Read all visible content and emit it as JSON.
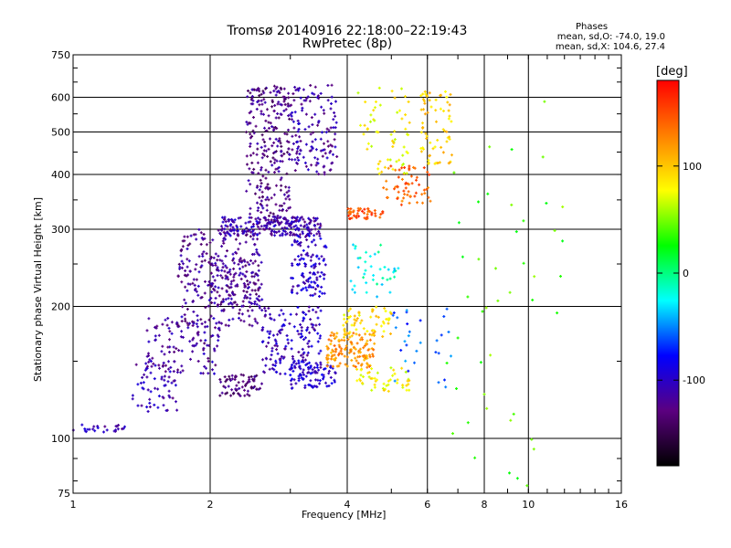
{
  "chart_data": {
    "type": "scatter",
    "title": "Tromsø 20140916 22:18:00–22:19:43",
    "subtitle": "RwPretec (8p)",
    "stats_header": "Phases",
    "stats_line1": "mean, sd,O: -74.0, 19.0",
    "stats_line2": "mean, sd,X: 104.6, 27.4",
    "xlabel": "Frequency [MHz]",
    "ylabel": "Stationary phase Virtual Height [km]",
    "x_scale": "log",
    "y_scale": "log",
    "xlim": [
      1,
      16
    ],
    "ylim": [
      75,
      750
    ],
    "x_ticks": [
      1,
      2,
      4,
      6,
      8,
      10,
      16
    ],
    "x_tick_labels": [
      "1",
      "2",
      "4",
      "6",
      "8",
      "10",
      "16"
    ],
    "y_ticks": [
      75,
      100,
      200,
      300,
      400,
      500,
      600,
      750
    ],
    "y_tick_labels": [
      "75",
      "100",
      "200",
      "300",
      "400",
      "500",
      "600",
      "750"
    ],
    "grid": true,
    "colorbar": {
      "label": "[deg]",
      "range": [
        -180,
        180
      ],
      "ticks": [
        100,
        0,
        -100
      ],
      "tick_labels": [
        "100",
        "0",
        "-100"
      ],
      "colormap": [
        "#000000",
        "#5b0080",
        "#0000ff",
        "#00ffff",
        "#00ff00",
        "#ffff00",
        "#ff8000",
        "#ff0000"
      ]
    },
    "clusters": [
      {
        "phase": -105,
        "f": [
          1.0,
          1.3
        ],
        "h": [
          103,
          108
        ],
        "n": 25
      },
      {
        "phase": -110,
        "f": [
          1.35,
          1.7
        ],
        "h": [
          115,
          150
        ],
        "n": 60
      },
      {
        "phase": -115,
        "f": [
          1.45,
          2.1
        ],
        "h": [
          140,
          190
        ],
        "n": 120
      },
      {
        "phase": -120,
        "f": [
          1.7,
          2.6
        ],
        "h": [
          180,
          300
        ],
        "n": 250
      },
      {
        "phase": -130,
        "f": [
          2.1,
          2.6
        ],
        "h": [
          125,
          140
        ],
        "n": 70
      },
      {
        "phase": -110,
        "f": [
          2.1,
          3.5
        ],
        "h": [
          290,
          320
        ],
        "n": 230
      },
      {
        "phase": -125,
        "f": [
          2.4,
          3.0
        ],
        "h": [
          310,
          640
        ],
        "n": 260
      },
      {
        "phase": -115,
        "f": [
          3.0,
          3.8
        ],
        "h": [
          400,
          640
        ],
        "n": 140
      },
      {
        "phase": -100,
        "f": [
          3.0,
          3.6
        ],
        "h": [
          210,
          290
        ],
        "n": 110
      },
      {
        "phase": -105,
        "f": [
          2.6,
          3.5
        ],
        "h": [
          140,
          200
        ],
        "n": 160
      },
      {
        "phase": -95,
        "f": [
          3.0,
          3.8
        ],
        "h": [
          130,
          150
        ],
        "n": 80
      },
      {
        "phase": -120,
        "f": [
          2.0,
          2.6
        ],
        "h": [
          200,
          260
        ],
        "n": 90
      },
      {
        "phase": 120,
        "f": [
          3.6,
          4.6
        ],
        "h": [
          145,
          175
        ],
        "n": 130
      },
      {
        "phase": 90,
        "f": [
          3.9,
          5.0
        ],
        "h": [
          170,
          200
        ],
        "n": 60
      },
      {
        "phase": 80,
        "f": [
          4.2,
          5.5
        ],
        "h": [
          128,
          145
        ],
        "n": 50
      },
      {
        "phase": 150,
        "f": [
          4.0,
          4.8
        ],
        "h": [
          315,
          335
        ],
        "n": 45
      },
      {
        "phase": 140,
        "f": [
          4.8,
          6.1
        ],
        "h": [
          340,
          420
        ],
        "n": 60
      },
      {
        "phase": 95,
        "f": [
          5.8,
          6.8
        ],
        "h": [
          420,
          620
        ],
        "n": 70
      },
      {
        "phase": 80,
        "f": [
          4.2,
          5.5
        ],
        "h": [
          400,
          640
        ],
        "n": 60
      },
      {
        "phase": -20,
        "f": [
          4.0,
          5.2
        ],
        "h": [
          210,
          280
        ],
        "n": 40
      },
      {
        "phase": -60,
        "f": [
          5.0,
          6.8
        ],
        "h": [
          130,
          200
        ],
        "n": 30
      },
      {
        "phase": 40,
        "f": [
          6.5,
          12.0
        ],
        "h": [
          78,
          600
        ],
        "n": 45
      }
    ]
  }
}
